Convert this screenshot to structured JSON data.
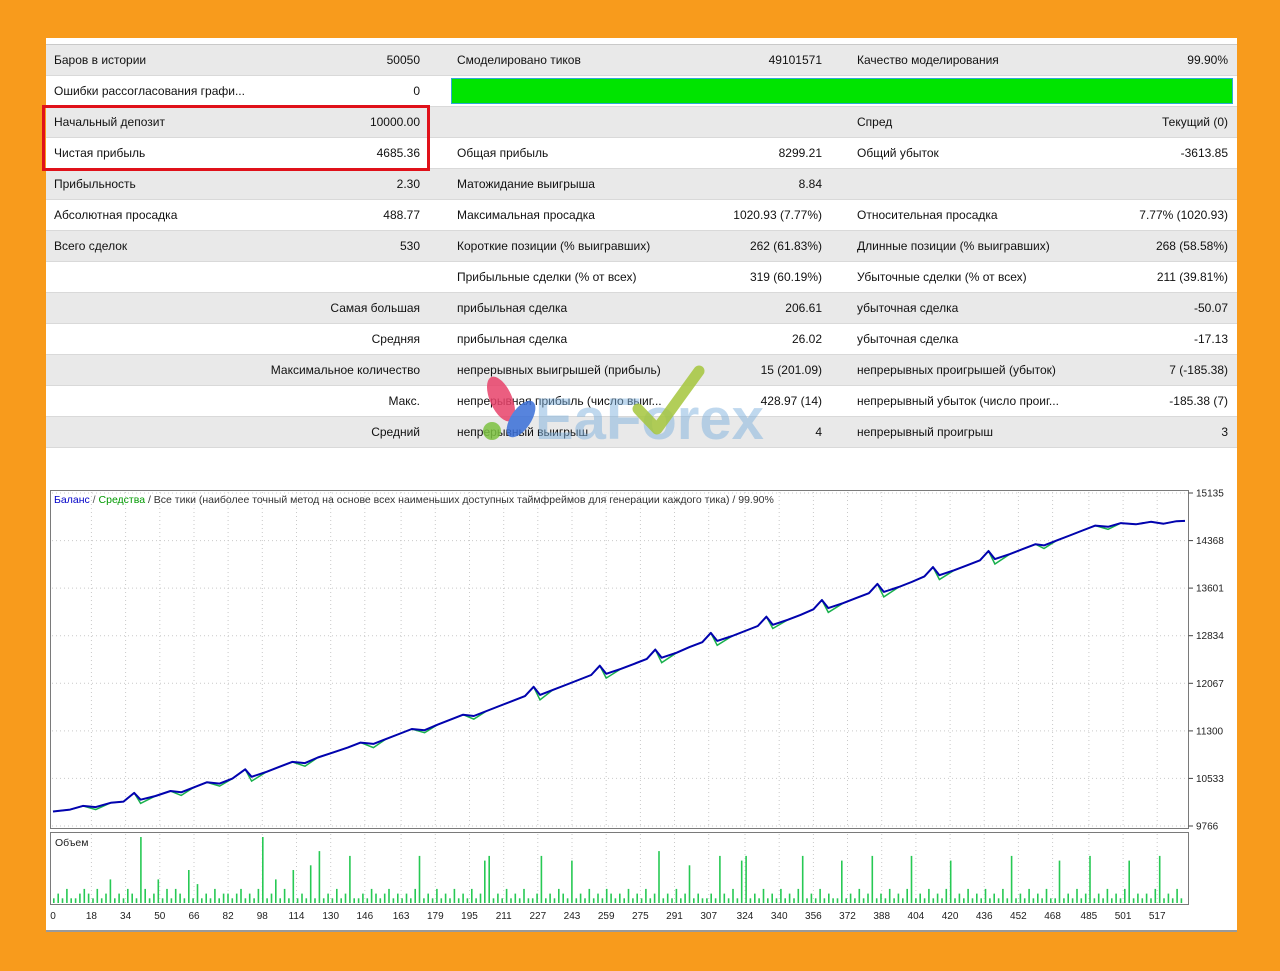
{
  "colors": {
    "frame_orange": "#F89B1C",
    "quality_bar_fill": "#00E400",
    "quality_bar_border": "#2FA8D5",
    "highlight_red": "#E0111A",
    "balance_line": "#0202AF",
    "equity_line": "#18B04C",
    "volume_bar": "#27C954",
    "grid": "#C9C9C9",
    "chart_border": "#7A7A7A",
    "header_balance_blue": "#0000C8",
    "header_equity_green": "#009900"
  },
  "watermark": {
    "text": "EaForex"
  },
  "stats_table": {
    "rows": [
      {
        "l1": "Баров в истории",
        "v1": "50050",
        "l2": "Смоделировано тиков",
        "v2": "49101571",
        "l3": "Качество моделирования",
        "v3": "99.90%"
      },
      {
        "l1": "Ошибки рассогласования графи...",
        "v1": "0",
        "l2": "",
        "v2": "",
        "l3": "",
        "v3": ""
      },
      {
        "l1": "Начальный депозит",
        "v1": "10000.00",
        "l2": "",
        "v2": "",
        "l3": "Спред",
        "v3": "Текущий (0)"
      },
      {
        "l1": "Чистая прибыль",
        "v1": "4685.36",
        "l2": "Общая прибыль",
        "v2": "8299.21",
        "l3": "Общий убыток",
        "v3": "-3613.85"
      },
      {
        "l1": "Прибыльность",
        "v1": "2.30",
        "l2": "Матожидание выигрыша",
        "v2": "8.84",
        "l3": "",
        "v3": ""
      },
      {
        "l1": "Абсолютная просадка",
        "v1": "488.77",
        "l2": "Максимальная просадка",
        "v2": "1020.93 (7.77%)",
        "l3": "Относительная просадка",
        "v3": "7.77% (1020.93)"
      },
      {
        "l1": "Всего сделок",
        "v1": "530",
        "l2": "Короткие позиции (% выигравших)",
        "v2": "262 (61.83%)",
        "l3": "Длинные позиции (% выигравших)",
        "v3": "268 (58.58%)"
      },
      {
        "l1": "",
        "v1": "",
        "l2": "Прибыльные сделки (% от всех)",
        "v2": "319 (60.19%)",
        "l3": "Убыточные сделки (% от всех)",
        "v3": "211 (39.81%)"
      },
      {
        "l1": "",
        "v1": "Самая большая",
        "l2": "прибыльная сделка",
        "v2": "206.61",
        "l3": "убыточная сделка",
        "v3": "-50.07"
      },
      {
        "l1": "",
        "v1": "Средняя",
        "l2": "прибыльная сделка",
        "v2": "26.02",
        "l3": "убыточная сделка",
        "v3": "-17.13"
      },
      {
        "l1": "",
        "v1": "Максимальное количество",
        "l2": "непрерывных выигрышей (прибыль)",
        "v2": "15 (201.09)",
        "l3": "непрерывных проигрышей (убыток)",
        "v3": "7 (-185.38)"
      },
      {
        "l1": "",
        "v1": "Макс.",
        "l2": "непрерывная прибыль (число выиг...",
        "v2": "428.97 (14)",
        "l3": "непрерывный убыток (число проиг...",
        "v3": "-185.38 (7)"
      },
      {
        "l1": "",
        "v1": "Средний",
        "l2": "непрерывный выигрыш",
        "v2": "4",
        "l3": "непрерывный проигрыш",
        "v3": "3"
      }
    ]
  },
  "chart_data": {
    "type": "line",
    "header": {
      "balance_label": "Баланс",
      "equity_label": "Средства",
      "separator": " / ",
      "description": "Все тики (наиболее точный метод на основе всех наименьших доступных таймфреймов для генерации каждого тика)",
      "quality": "99.90%"
    },
    "volume_label": "Объем",
    "y_ticks": [
      15135,
      14368,
      13601,
      12834,
      12067,
      11300,
      10533,
      9766
    ],
    "x_ticks": [
      0,
      18,
      34,
      50,
      66,
      82,
      98,
      114,
      130,
      146,
      163,
      179,
      195,
      211,
      227,
      243,
      259,
      275,
      291,
      307,
      324,
      340,
      356,
      372,
      388,
      404,
      420,
      436,
      452,
      468,
      485,
      501,
      517
    ],
    "y_range": [
      9766,
      15135
    ],
    "x_range": [
      0,
      530
    ],
    "balance_series": [
      [
        0,
        10000,
        0
      ],
      [
        8,
        10030,
        0
      ],
      [
        14,
        10090,
        0
      ],
      [
        20,
        10070,
        40
      ],
      [
        27,
        10140,
        0
      ],
      [
        33,
        10160,
        0
      ],
      [
        38,
        10300,
        0
      ],
      [
        41,
        10190,
        60
      ],
      [
        48,
        10250,
        0
      ],
      [
        55,
        10330,
        0
      ],
      [
        60,
        10310,
        50
      ],
      [
        66,
        10390,
        0
      ],
      [
        72,
        10470,
        0
      ],
      [
        78,
        10450,
        40
      ],
      [
        84,
        10530,
        0
      ],
      [
        90,
        10680,
        0
      ],
      [
        93,
        10560,
        70
      ],
      [
        100,
        10640,
        0
      ],
      [
        106,
        10720,
        0
      ],
      [
        112,
        10800,
        0
      ],
      [
        118,
        10780,
        50
      ],
      [
        124,
        10870,
        0
      ],
      [
        131,
        10950,
        0
      ],
      [
        138,
        11030,
        0
      ],
      [
        144,
        11110,
        0
      ],
      [
        150,
        11090,
        60
      ],
      [
        156,
        11170,
        0
      ],
      [
        162,
        11250,
        0
      ],
      [
        168,
        11330,
        0
      ],
      [
        174,
        11310,
        40
      ],
      [
        180,
        11400,
        0
      ],
      [
        186,
        11480,
        0
      ],
      [
        192,
        11560,
        0
      ],
      [
        197,
        11540,
        50
      ],
      [
        203,
        11620,
        0
      ],
      [
        209,
        11700,
        0
      ],
      [
        215,
        11780,
        0
      ],
      [
        221,
        11860,
        0
      ],
      [
        225,
        12010,
        0
      ],
      [
        228,
        11880,
        80
      ],
      [
        234,
        11960,
        0
      ],
      [
        240,
        12040,
        0
      ],
      [
        246,
        12120,
        0
      ],
      [
        252,
        12200,
        0
      ],
      [
        256,
        12350,
        0
      ],
      [
        259,
        12220,
        70
      ],
      [
        266,
        12300,
        0
      ],
      [
        272,
        12380,
        0
      ],
      [
        278,
        12460,
        0
      ],
      [
        282,
        12610,
        0
      ],
      [
        285,
        12480,
        80
      ],
      [
        292,
        12560,
        0
      ],
      [
        298,
        12650,
        0
      ],
      [
        304,
        12730,
        0
      ],
      [
        308,
        12880,
        0
      ],
      [
        311,
        12750,
        70
      ],
      [
        318,
        12830,
        0
      ],
      [
        324,
        12910,
        0
      ],
      [
        330,
        12990,
        0
      ],
      [
        334,
        13140,
        0
      ],
      [
        337,
        13010,
        60
      ],
      [
        344,
        13090,
        0
      ],
      [
        350,
        13170,
        0
      ],
      [
        356,
        13260,
        0
      ],
      [
        360,
        13410,
        0
      ],
      [
        363,
        13280,
        70
      ],
      [
        370,
        13360,
        0
      ],
      [
        376,
        13440,
        0
      ],
      [
        382,
        13520,
        0
      ],
      [
        386,
        13670,
        0
      ],
      [
        389,
        13540,
        80
      ],
      [
        396,
        13620,
        0
      ],
      [
        402,
        13700,
        0
      ],
      [
        408,
        13790,
        0
      ],
      [
        412,
        13940,
        0
      ],
      [
        415,
        13810,
        70
      ],
      [
        422,
        13890,
        0
      ],
      [
        428,
        13970,
        0
      ],
      [
        434,
        14050,
        0
      ],
      [
        438,
        14200,
        0
      ],
      [
        441,
        14070,
        80
      ],
      [
        448,
        14150,
        0
      ],
      [
        454,
        14230,
        0
      ],
      [
        460,
        14310,
        0
      ],
      [
        464,
        14290,
        50
      ],
      [
        470,
        14370,
        0
      ],
      [
        476,
        14450,
        0
      ],
      [
        482,
        14530,
        0
      ],
      [
        488,
        14610,
        0
      ],
      [
        494,
        14590,
        40
      ],
      [
        500,
        14650,
        0
      ],
      [
        507,
        14630,
        0
      ],
      [
        514,
        14670,
        0
      ],
      [
        520,
        14640,
        0
      ],
      [
        526,
        14680,
        0
      ],
      [
        530,
        14685,
        0
      ]
    ],
    "volume_max": 14,
    "volumes_hex": "12131123213125121321E31251313217141213122123121 3E125131712181B121312A112132123121213A121312131213129A12131213112A121321912131213212131213 12B1213128121121A21319A1213121312 13A1213121 19121312A12131213A1213121391213121312131A12131213119121312A121312139121213A12131"
  }
}
